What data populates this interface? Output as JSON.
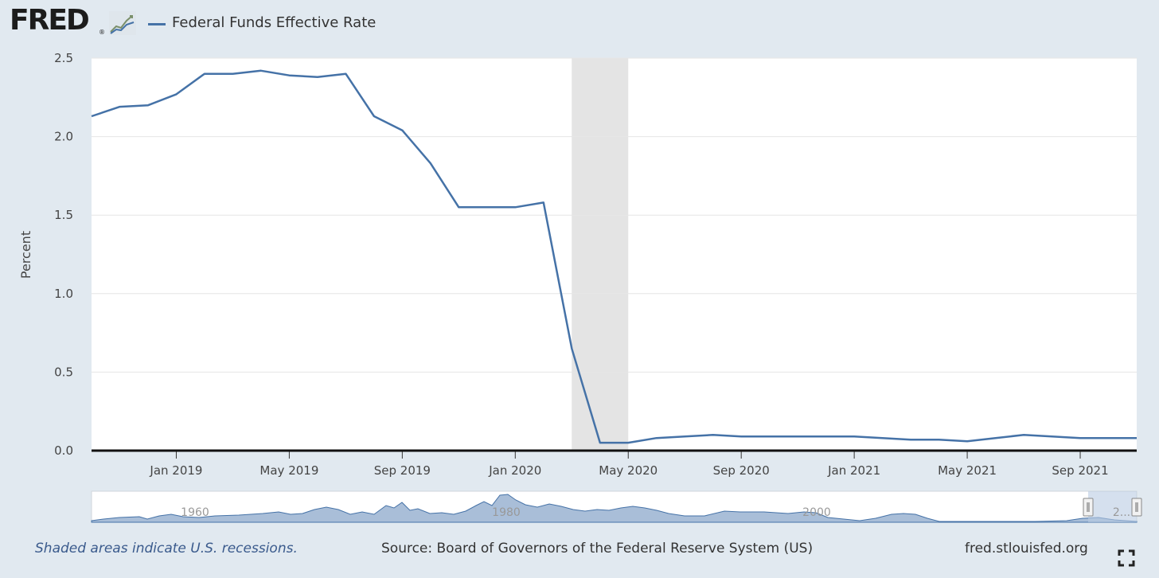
{
  "header": {
    "logo": "FRED",
    "logo_reg": "®",
    "logo_icon": "chart-graph-icon"
  },
  "chart_data": {
    "type": "line",
    "title": "",
    "xlabel": "",
    "ylabel": "Percent",
    "ylim": [
      0,
      2.5
    ],
    "yticks": [
      "0.0",
      "0.5",
      "1.0",
      "1.5",
      "2.0",
      "2.5"
    ],
    "xlim": [
      "2018-10-01",
      "2021-11-01"
    ],
    "xticks": [
      "Jan 2019",
      "May 2019",
      "Sep 2019",
      "Jan 2020",
      "May 2020",
      "Sep 2020",
      "Jan 2021",
      "May 2021",
      "Sep 2021"
    ],
    "grid": true,
    "legend": "top-left",
    "recession_shading": [
      [
        "2020-03-01",
        "2020-05-01"
      ]
    ],
    "series": [
      {
        "name": "Federal Funds Effective Rate",
        "color": "#4572a7",
        "x": [
          "2018-10-01",
          "2018-11-01",
          "2018-12-01",
          "2019-01-01",
          "2019-02-01",
          "2019-03-01",
          "2019-04-01",
          "2019-05-01",
          "2019-06-01",
          "2019-07-01",
          "2019-08-01",
          "2019-09-01",
          "2019-10-01",
          "2019-11-01",
          "2019-12-01",
          "2020-01-01",
          "2020-02-01",
          "2020-03-01",
          "2020-04-01",
          "2020-05-01",
          "2020-06-01",
          "2020-07-01",
          "2020-08-01",
          "2020-09-01",
          "2020-10-01",
          "2020-11-01",
          "2020-12-01",
          "2021-01-01",
          "2021-02-01",
          "2021-03-01",
          "2021-04-01",
          "2021-05-01",
          "2021-06-01",
          "2021-07-01",
          "2021-08-01",
          "2021-09-01",
          "2021-10-01",
          "2021-11-01"
        ],
        "y": [
          2.13,
          2.19,
          2.2,
          2.27,
          2.4,
          2.4,
          2.42,
          2.39,
          2.38,
          2.4,
          2.13,
          2.04,
          1.83,
          1.55,
          1.55,
          1.55,
          1.58,
          0.65,
          0.05,
          0.05,
          0.08,
          0.09,
          0.1,
          0.09,
          0.09,
          0.09,
          0.09,
          0.09,
          0.08,
          0.07,
          0.07,
          0.06,
          0.08,
          0.1,
          0.09,
          0.08,
          0.08,
          0.08
        ]
      }
    ],
    "navigator": {
      "labels": [
        "1960",
        "1980",
        "2000",
        "2..."
      ]
    }
  },
  "footer": {
    "note": "Shaded areas indicate U.S. recessions.",
    "source": "Source: Board of Governors of the Federal Reserve System (US)",
    "site": "fred.stlouisfed.org",
    "fullscreen_icon": "fullscreen-icon"
  }
}
